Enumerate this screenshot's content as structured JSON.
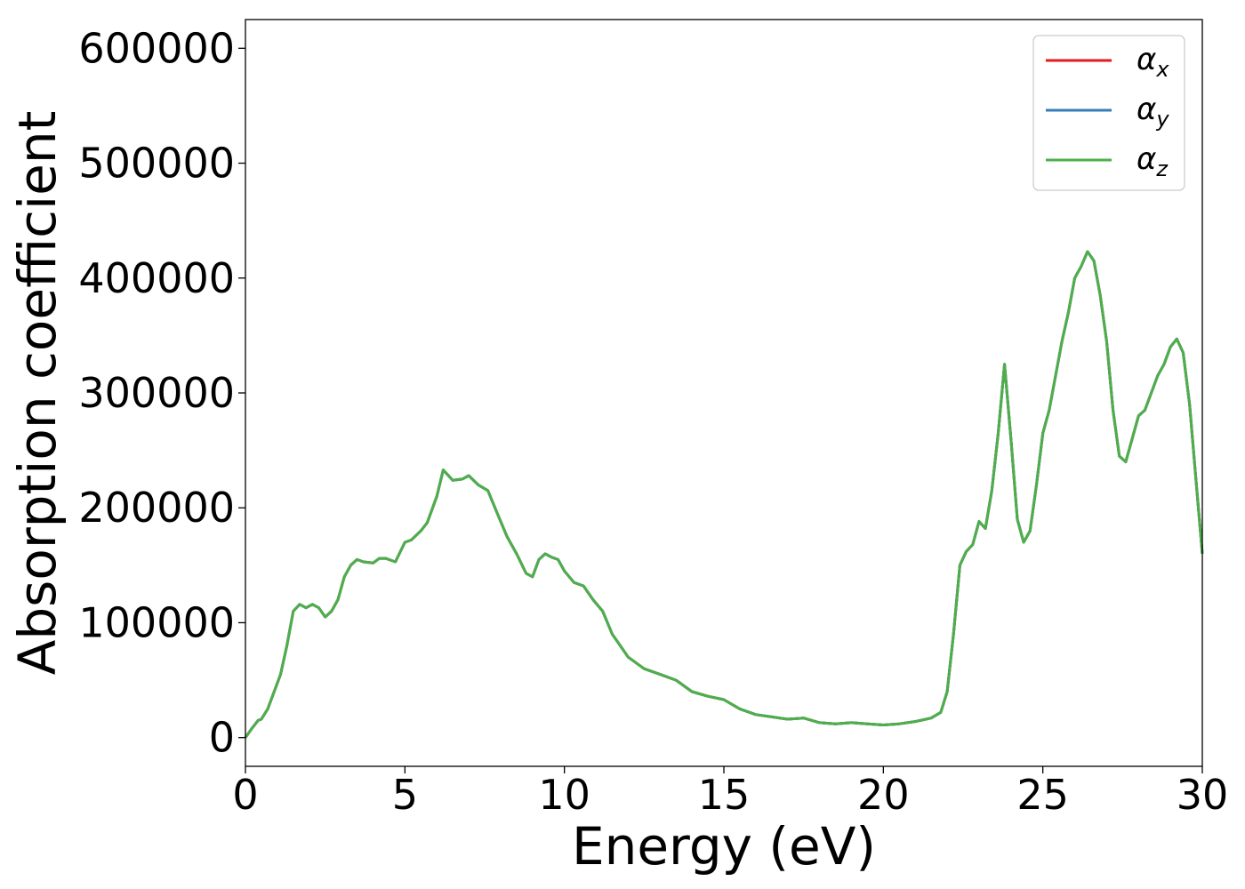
{
  "chart_data": {
    "type": "line",
    "xlabel": "Energy (eV)",
    "ylabel": "Absorption coefficient",
    "xlim": [
      0,
      30
    ],
    "ylim": [
      -25000,
      625000
    ],
    "xticks": [
      0,
      5,
      10,
      15,
      20,
      25,
      30
    ],
    "yticks": [
      0,
      100000,
      200000,
      300000,
      400000,
      500000,
      600000
    ],
    "xtick_labels": [
      "0",
      "5",
      "10",
      "15",
      "20",
      "25",
      "30"
    ],
    "ytick_labels": [
      "0",
      "100000",
      "200000",
      "300000",
      "400000",
      "500000",
      "600000"
    ],
    "grid": false,
    "legend_position": "top-right",
    "series": [
      {
        "name": "α",
        "subscript": "x",
        "color": "#e41a1c"
      },
      {
        "name": "α",
        "subscript": "y",
        "color": "#377eb8"
      },
      {
        "name": "α",
        "subscript": "z",
        "color": "#4daf4a"
      }
    ],
    "x": [
      0,
      0.2,
      0.4,
      0.5,
      0.7,
      0.9,
      1.1,
      1.3,
      1.5,
      1.7,
      1.9,
      2.1,
      2.3,
      2.5,
      2.7,
      2.9,
      3.1,
      3.3,
      3.5,
      3.7,
      4.0,
      4.2,
      4.4,
      4.7,
      5.0,
      5.2,
      5.5,
      5.7,
      6.0,
      6.2,
      6.5,
      6.8,
      7.0,
      7.3,
      7.6,
      7.9,
      8.2,
      8.5,
      8.8,
      9.0,
      9.2,
      9.4,
      9.6,
      9.8,
      10.0,
      10.3,
      10.6,
      10.9,
      11.2,
      11.5,
      12.0,
      12.5,
      13.0,
      13.5,
      14.0,
      14.5,
      15.0,
      15.5,
      16.0,
      16.5,
      17.0,
      17.5,
      18.0,
      18.5,
      19.0,
      19.5,
      20.0,
      20.5,
      21.0,
      21.5,
      21.8,
      22.0,
      22.2,
      22.4,
      22.6,
      22.8,
      23.0,
      23.2,
      23.4,
      23.6,
      23.8,
      24.0,
      24.2,
      24.4,
      24.6,
      24.8,
      25.0,
      25.2,
      25.4,
      25.6,
      25.8,
      26.0,
      26.2,
      26.4,
      26.6,
      26.8,
      27.0,
      27.2,
      27.4,
      27.6,
      27.8,
      28.0,
      28.2,
      28.4,
      28.6,
      28.8,
      29.0,
      29.2,
      29.4,
      29.6,
      29.8,
      30.0
    ],
    "y_all_series": [
      0,
      8000,
      15000,
      16000,
      25000,
      40000,
      55000,
      80000,
      110000,
      116000,
      113000,
      116000,
      113000,
      105000,
      110000,
      120000,
      140000,
      150000,
      155000,
      153000,
      152000,
      156000,
      156000,
      153000,
      170000,
      172000,
      180000,
      187000,
      210000,
      233000,
      224000,
      225000,
      228000,
      220000,
      215000,
      195000,
      175000,
      160000,
      143000,
      140000,
      155000,
      160000,
      157000,
      155000,
      145000,
      135000,
      132000,
      120000,
      110000,
      90000,
      70000,
      60000,
      55000,
      50000,
      40000,
      36000,
      33000,
      25000,
      20000,
      18000,
      16000,
      17000,
      13000,
      12000,
      13000,
      12000,
      11000,
      12000,
      14000,
      17000,
      22000,
      40000,
      90000,
      150000,
      162000,
      168000,
      188000,
      182000,
      215000,
      265000,
      325000,
      260000,
      190000,
      170000,
      180000,
      220000,
      265000,
      285000,
      315000,
      345000,
      370000,
      400000,
      410000,
      423000,
      415000,
      385000,
      345000,
      285000,
      245000,
      240000,
      260000,
      280000,
      285000,
      300000,
      315000,
      325000,
      340000,
      347000,
      335000,
      290000,
      225000,
      160000
    ]
  }
}
